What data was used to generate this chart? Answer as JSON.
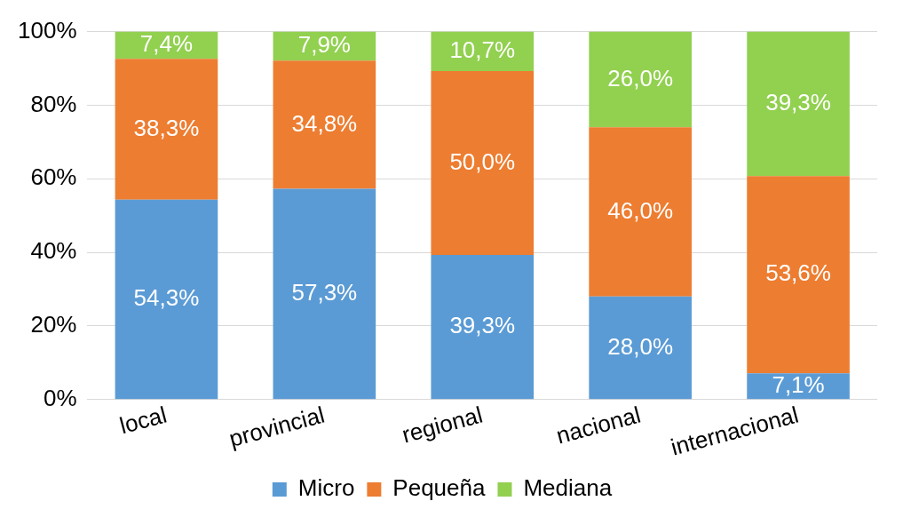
{
  "chart_data": {
    "type": "bar",
    "stacked": true,
    "categories": [
      "local",
      "provincial",
      "regional",
      "nacional",
      "internacional"
    ],
    "series": [
      {
        "name": "Micro",
        "color": "#5b9bd5",
        "values": [
          54.3,
          57.3,
          39.3,
          28.0,
          7.1
        ],
        "value_labels": [
          "54,3%",
          "57,3%",
          "39,3%",
          "28,0%",
          "7,1%"
        ]
      },
      {
        "name": "Pequeña",
        "color": "#ed7d31",
        "values": [
          38.3,
          34.8,
          50.0,
          46.0,
          53.6
        ],
        "value_labels": [
          "38,3%",
          "34,8%",
          "50,0%",
          "46,0%",
          "53,6%"
        ]
      },
      {
        "name": "Mediana",
        "color": "#92d050",
        "values": [
          7.4,
          7.9,
          10.7,
          26.0,
          39.3
        ],
        "value_labels": [
          "7,4%",
          "7,9%",
          "10,7%",
          "26,0%",
          "39,3%"
        ]
      }
    ],
    "ylim": [
      0,
      100
    ],
    "yticks": [
      {
        "value": 0,
        "label": "0%"
      },
      {
        "value": 20,
        "label": "20%"
      },
      {
        "value": 40,
        "label": "40%"
      },
      {
        "value": 60,
        "label": "60%"
      },
      {
        "value": 80,
        "label": "80%"
      },
      {
        "value": 100,
        "label": "100%"
      }
    ],
    "grid": "y",
    "legend": "bottom"
  }
}
